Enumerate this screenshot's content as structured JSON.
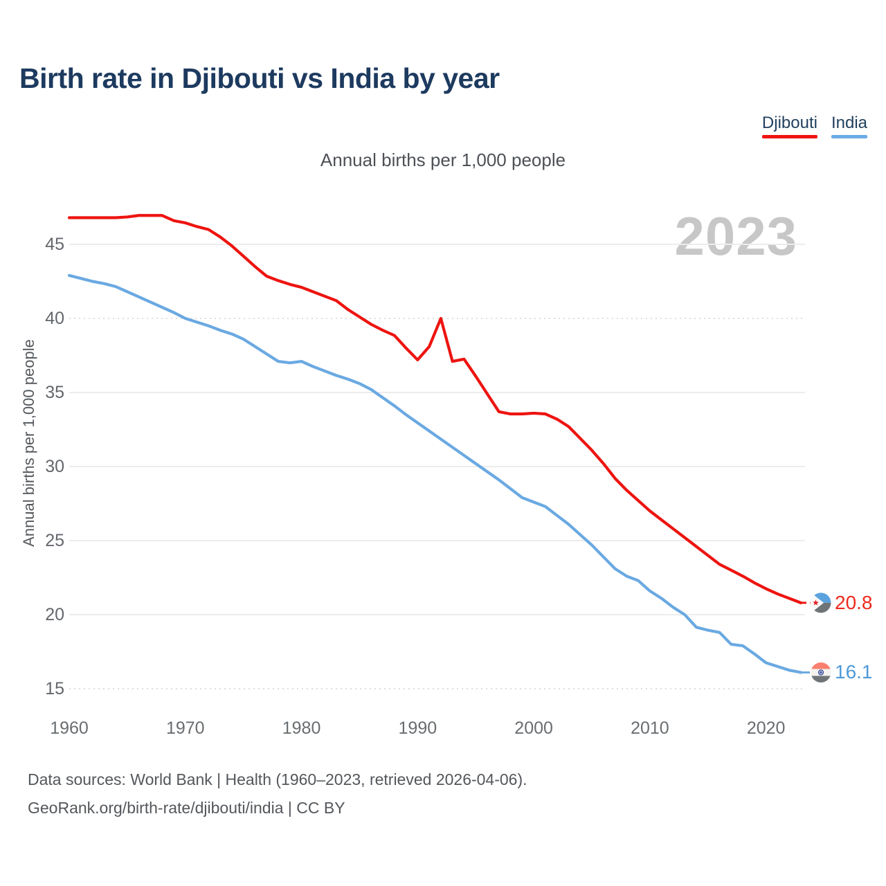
{
  "header": {
    "title": "Birth rate in Djibouti vs India by year"
  },
  "legend": [
    {
      "label": "Djibouti",
      "color": "#f01311"
    },
    {
      "label": "India",
      "color": "#6aabe6"
    }
  ],
  "subtitle": "Annual births per 1,000 people",
  "watermark": "2023",
  "footer": {
    "line1": "Data sources: World Bank | Health (1960–2023, retrieved 2026-04-06).",
    "line2": "GeoRank.org/birth-rate/djibouti/india | CC BY"
  },
  "chart_data": {
    "type": "line",
    "title": "Birth rate in Djibouti vs India by year",
    "xlabel": "",
    "ylabel": "Annual births per 1,000 people",
    "grid": true,
    "legend_position": "top-right",
    "xlim": [
      1960,
      2023
    ],
    "ylim": [
      15,
      47.5
    ],
    "xticks": [
      1960,
      1970,
      1980,
      1990,
      2000,
      2010,
      2020
    ],
    "yticks": [
      45,
      40,
      35,
      30,
      25,
      20,
      15
    ],
    "dashed_yticks": [
      40,
      15
    ],
    "x": [
      1960,
      1961,
      1962,
      1963,
      1964,
      1965,
      1966,
      1967,
      1968,
      1969,
      1970,
      1971,
      1972,
      1973,
      1974,
      1975,
      1976,
      1977,
      1978,
      1979,
      1980,
      1981,
      1982,
      1983,
      1984,
      1985,
      1986,
      1987,
      1988,
      1989,
      1990,
      1991,
      1992,
      1993,
      1994,
      1995,
      1996,
      1997,
      1998,
      1999,
      2000,
      2001,
      2002,
      2003,
      2004,
      2005,
      2006,
      2007,
      2008,
      2009,
      2010,
      2011,
      2012,
      2013,
      2014,
      2015,
      2016,
      2017,
      2018,
      2019,
      2020,
      2021,
      2022,
      2023
    ],
    "series": [
      {
        "name": "Djibouti",
        "color": "#ed1410",
        "end_label": "20.8",
        "values": [
          46.8,
          46.8,
          46.8,
          46.8,
          46.8,
          46.85,
          46.95,
          46.95,
          46.95,
          46.6,
          46.45,
          46.2,
          46.0,
          45.5,
          44.9,
          44.2,
          43.5,
          42.85,
          42.55,
          42.3,
          42.1,
          41.8,
          41.5,
          41.2,
          40.6,
          40.1,
          39.6,
          39.2,
          38.85,
          38.0,
          37.2,
          38.1,
          40.0,
          37.1,
          37.25,
          36.1,
          34.9,
          33.7,
          33.55,
          33.55,
          33.6,
          33.55,
          33.2,
          32.7,
          31.9,
          31.1,
          30.2,
          29.2,
          28.4,
          27.7,
          27.0,
          26.4,
          25.8,
          25.2,
          24.6,
          24.0,
          23.4,
          23.0,
          22.6,
          22.15,
          21.75,
          21.4,
          21.1,
          20.8
        ]
      },
      {
        "name": "India",
        "color": "#6aa9e2",
        "end_label": "16.1",
        "values": [
          42.9,
          42.7,
          42.5,
          42.35,
          42.15,
          41.8,
          41.45,
          41.1,
          40.75,
          40.4,
          40.0,
          39.75,
          39.5,
          39.2,
          38.95,
          38.6,
          38.1,
          37.6,
          37.1,
          37.0,
          37.1,
          36.75,
          36.45,
          36.15,
          35.9,
          35.6,
          35.2,
          34.65,
          34.1,
          33.5,
          32.95,
          32.4,
          31.85,
          31.3,
          30.75,
          30.2,
          29.65,
          29.1,
          28.5,
          27.9,
          27.6,
          27.3,
          26.7,
          26.1,
          25.4,
          24.7,
          23.9,
          23.1,
          22.6,
          22.3,
          21.6,
          21.1,
          20.5,
          20.0,
          19.15,
          18.95,
          18.8,
          18.0,
          17.9,
          17.35,
          16.75,
          16.5,
          16.25,
          16.1
        ]
      }
    ]
  }
}
